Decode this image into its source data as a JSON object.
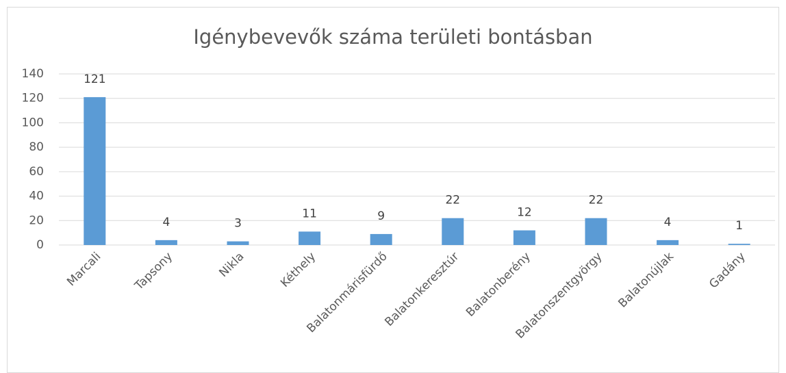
{
  "chart_data": {
    "type": "bar",
    "title": "Igénybevevők száma területi bontásban",
    "categories": [
      "Marcali",
      "Tapsony",
      "Nikla",
      "Kéthely",
      "Balatonmárisfürdő",
      "Balatonkeresztúr",
      "Balatonberény",
      "Balatonszentgyörgy",
      "Balatonújlak",
      "Gadány"
    ],
    "values": [
      121,
      4,
      3,
      11,
      9,
      22,
      12,
      22,
      4,
      1
    ],
    "color": "#5b9bd5",
    "ylim": [
      0,
      140
    ],
    "yticks": [
      0,
      20,
      40,
      60,
      80,
      100,
      120,
      140
    ],
    "grid": true,
    "data_labels": true
  }
}
